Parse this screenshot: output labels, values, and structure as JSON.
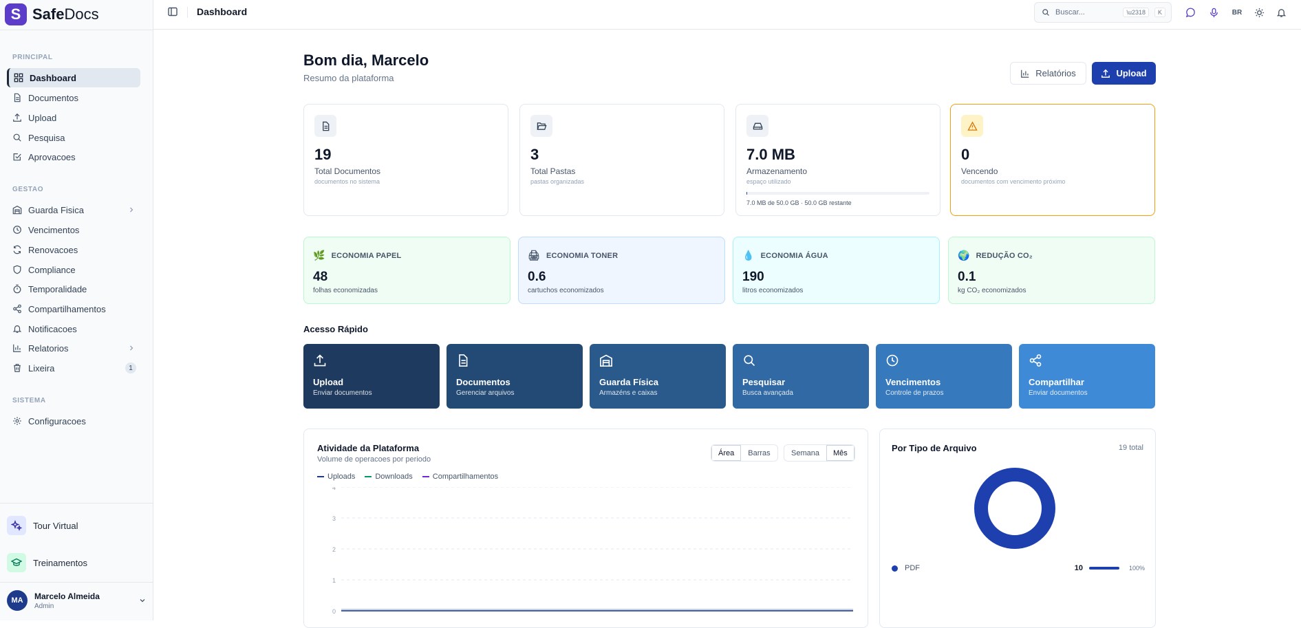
{
  "app": {
    "logo_letter": "S",
    "name_bold": "Safe",
    "name_rest": "Docs"
  },
  "sidebar": {
    "section_principal": "PRINCIPAL",
    "section_gestao": "GESTAO",
    "section_sistema": "SISTEMA",
    "items": [
      {
        "label": "Dashboard",
        "icon": "dashboard-icon"
      },
      {
        "label": "Documentos",
        "icon": "file-icon"
      },
      {
        "label": "Upload",
        "icon": "upload-icon"
      },
      {
        "label": "Pesquisa",
        "icon": "search-icon"
      },
      {
        "label": "Aprovacoes",
        "icon": "check-square-icon"
      },
      {
        "label": "Guarda Fisica",
        "icon": "warehouse-icon"
      },
      {
        "label": "Vencimentos",
        "icon": "clock-icon"
      },
      {
        "label": "Renovacoes",
        "icon": "refresh-icon"
      },
      {
        "label": "Compliance",
        "icon": "shield-icon"
      },
      {
        "label": "Temporalidade",
        "icon": "timer-icon"
      },
      {
        "label": "Compartilhamentos",
        "icon": "share-icon"
      },
      {
        "label": "Notificacoes",
        "icon": "bell-icon"
      },
      {
        "label": "Relatorios",
        "icon": "bar-chart-icon"
      },
      {
        "label": "Lixeira",
        "icon": "trash-icon",
        "badge": "1"
      },
      {
        "label": "Configuracoes",
        "icon": "gear-icon"
      }
    ],
    "tour": "Tour Virtual",
    "training": "Treinamentos",
    "user": {
      "initials": "MA",
      "name": "Marcelo Almeida",
      "role": "Admin"
    }
  },
  "topbar": {
    "title": "Dashboard",
    "search_placeholder": "Buscar...",
    "shortcut_1": "\\u2318",
    "shortcut_2": "K",
    "lang": "BR"
  },
  "header": {
    "greeting": "Bom dia, Marcelo",
    "subtitle": "Resumo da plataforma",
    "btn_reports": "Relatórios",
    "btn_upload": "Upload"
  },
  "stats": [
    {
      "value": "19",
      "label": "Total Documentos",
      "sub": "documentos no sistema"
    },
    {
      "value": "3",
      "label": "Total Pastas",
      "sub": "pastas organizadas"
    },
    {
      "value": "7.0 MB",
      "label": "Armazenamento",
      "sub": "espaço utilizado",
      "storage_text": "7.0 MB de 50.0 GB · 50.0 GB restante",
      "storage_fraction": 0.00014
    },
    {
      "value": "0",
      "label": "Vencendo",
      "sub": "documentos com vencimento próximo"
    }
  ],
  "eco": [
    {
      "title": "ECONOMIA PAPEL",
      "value": "48",
      "sub": "folhas economizadas",
      "bg": "#f0fdf4",
      "border": "#bbf7d0"
    },
    {
      "title": "ECONOMIA TONER",
      "value": "0.6",
      "sub": "cartuchos economizados",
      "bg": "#eff6ff",
      "border": "#bfdbfe"
    },
    {
      "title": "ECONOMIA ÁGUA",
      "value": "190",
      "sub": "litros economizados",
      "bg": "#ecfeff",
      "border": "#a5f3fc"
    },
    {
      "title": "REDUÇÃO CO₂",
      "value": "0.1",
      "sub": "kg CO₂ economizados",
      "bg": "#f0fdf4",
      "border": "#bbf7d0"
    }
  ],
  "quick": {
    "title": "Acesso Rápido",
    "items": [
      {
        "title": "Upload",
        "desc": "Enviar documentos",
        "color": "#1e3a5f"
      },
      {
        "title": "Documentos",
        "desc": "Gerenciar arquivos",
        "color": "#234a74"
      },
      {
        "title": "Guarda Física",
        "desc": "Armazéns e caixas",
        "color": "#2a5a8c"
      },
      {
        "title": "Pesquisar",
        "desc": "Busca avançada",
        "color": "#3069a3"
      },
      {
        "title": "Vencimentos",
        "desc": "Controle de prazos",
        "color": "#3779bd"
      },
      {
        "title": "Compartilhar",
        "desc": "Enviar documentos",
        "color": "#3f8ad6"
      }
    ]
  },
  "activity": {
    "title": "Atividade da Plataforma",
    "subtitle": "Volume de operacoes por periodo",
    "view_area": "Área",
    "view_bars": "Barras",
    "period_week": "Semana",
    "period_month": "Mês",
    "series": [
      {
        "name": "Uploads",
        "color": "#1e3a8a"
      },
      {
        "name": "Downloads",
        "color": "#059669"
      },
      {
        "name": "Compartilhamentos",
        "color": "#6d28d9"
      }
    ],
    "y_ticks": [
      "0",
      "1",
      "2",
      "3",
      "4"
    ]
  },
  "file_types": {
    "title": "Por Tipo de Arquivo",
    "total": "19 total",
    "items": [
      {
        "label": "PDF",
        "count": "10",
        "percent": "100%",
        "color": "#1e40af"
      }
    ]
  }
}
